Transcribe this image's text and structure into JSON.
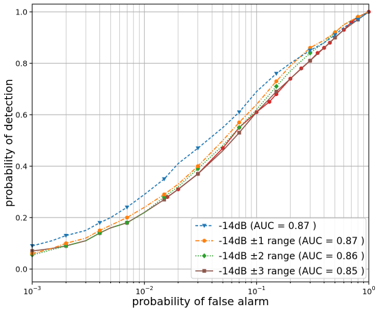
{
  "chart_data": {
    "type": "line",
    "xscale": "log",
    "xlim": [
      0.001,
      1
    ],
    "ylim": [
      -0.05,
      1.03
    ],
    "grid": "on (major and minor)",
    "legend_placement": "lower-right",
    "xlabel": "probability of false alarm",
    "ylabel": "probability of detection",
    "x_ticks": [
      {
        "value": 0.001,
        "base": "10",
        "exp": "−3"
      },
      {
        "value": 0.01,
        "base": "10",
        "exp": "−2"
      },
      {
        "value": 0.1,
        "base": "10",
        "exp": "−1"
      },
      {
        "value": 1,
        "base": "10",
        "exp": "0"
      }
    ],
    "y_ticks": [
      {
        "value": 0.0,
        "label": "0.0"
      },
      {
        "value": 0.2,
        "label": "0.2"
      },
      {
        "value": 0.4,
        "label": "0.4"
      },
      {
        "value": 0.6,
        "label": "0.6"
      },
      {
        "value": 0.8,
        "label": "0.8"
      },
      {
        "value": 1.0,
        "label": "1.0"
      }
    ],
    "series": [
      {
        "name": "-14dB (AUC = 0.87 )",
        "color": "#1f77b4",
        "linestyle": "dashed",
        "marker": "triangle-down",
        "points": [
          [
            0.001,
            0.09
          ],
          [
            0.0015,
            0.11
          ],
          [
            0.002,
            0.13
          ],
          [
            0.003,
            0.15
          ],
          [
            0.004,
            0.18
          ],
          [
            0.005,
            0.2
          ],
          [
            0.007,
            0.24
          ],
          [
            0.01,
            0.29
          ],
          [
            0.015,
            0.35
          ],
          [
            0.02,
            0.41
          ],
          [
            0.03,
            0.47
          ],
          [
            0.05,
            0.55
          ],
          [
            0.07,
            0.61
          ],
          [
            0.1,
            0.69
          ],
          [
            0.15,
            0.76
          ],
          [
            0.2,
            0.8
          ],
          [
            0.3,
            0.85
          ],
          [
            0.4,
            0.88
          ],
          [
            0.5,
            0.91
          ],
          [
            0.6,
            0.94
          ],
          [
            0.8,
            0.97
          ],
          [
            1.0,
            1.0
          ]
        ]
      },
      {
        "name": "-14dB  ±1 range (AUC = 0.87 )",
        "color": "#ff7f0e",
        "linestyle": "dashdot",
        "marker": "circle",
        "points": [
          [
            0.001,
            0.06
          ],
          [
            0.0015,
            0.08
          ],
          [
            0.002,
            0.1
          ],
          [
            0.003,
            0.12
          ],
          [
            0.004,
            0.15
          ],
          [
            0.005,
            0.17
          ],
          [
            0.007,
            0.2
          ],
          [
            0.01,
            0.24
          ],
          [
            0.015,
            0.29
          ],
          [
            0.02,
            0.33
          ],
          [
            0.03,
            0.4
          ],
          [
            0.05,
            0.5
          ],
          [
            0.07,
            0.57
          ],
          [
            0.1,
            0.64
          ],
          [
            0.15,
            0.73
          ],
          [
            0.2,
            0.79
          ],
          [
            0.3,
            0.86
          ],
          [
            0.4,
            0.89
          ],
          [
            0.5,
            0.92
          ],
          [
            0.6,
            0.95
          ],
          [
            0.8,
            0.98
          ],
          [
            1.0,
            1.0
          ]
        ]
      },
      {
        "name": "-14dB  ±2 range (AUC = 0.86 )",
        "color": "#2ca02c",
        "linestyle": "dotted",
        "marker": "diamond",
        "points": [
          [
            0.001,
            0.055
          ],
          [
            0.0015,
            0.075
          ],
          [
            0.002,
            0.09
          ],
          [
            0.003,
            0.11
          ],
          [
            0.004,
            0.14
          ],
          [
            0.005,
            0.16
          ],
          [
            0.007,
            0.18
          ],
          [
            0.01,
            0.22
          ],
          [
            0.015,
            0.28
          ],
          [
            0.02,
            0.32
          ],
          [
            0.03,
            0.39
          ],
          [
            0.05,
            0.48
          ],
          [
            0.07,
            0.55
          ],
          [
            0.1,
            0.62
          ],
          [
            0.15,
            0.71
          ],
          [
            0.2,
            0.77
          ],
          [
            0.3,
            0.84
          ],
          [
            0.4,
            0.88
          ],
          [
            0.5,
            0.92
          ],
          [
            0.6,
            0.95
          ],
          [
            0.8,
            0.98
          ],
          [
            1.0,
            1.0
          ]
        ]
      },
      {
        "name": "-14dB  ±3 range (AUC = 0.85 )",
        "color": "#8c564b",
        "linestyle": "solid",
        "marker": "square",
        "points": [
          [
            0.001,
            0.07
          ],
          [
            0.0015,
            0.08
          ],
          [
            0.002,
            0.09
          ],
          [
            0.003,
            0.11
          ],
          [
            0.004,
            0.14
          ],
          [
            0.005,
            0.16
          ],
          [
            0.007,
            0.18
          ],
          [
            0.01,
            0.22
          ],
          [
            0.015,
            0.27
          ],
          [
            0.02,
            0.31
          ],
          [
            0.03,
            0.37
          ],
          [
            0.05,
            0.46
          ],
          [
            0.07,
            0.53
          ],
          [
            0.1,
            0.61
          ],
          [
            0.15,
            0.69
          ],
          [
            0.2,
            0.74
          ],
          [
            0.3,
            0.81
          ],
          [
            0.4,
            0.86
          ],
          [
            0.5,
            0.9
          ],
          [
            0.6,
            0.93
          ],
          [
            0.8,
            0.97
          ],
          [
            1.0,
            1.0
          ]
        ]
      },
      {
        "name": "",
        "color": "#d62728",
        "linestyle": "solid",
        "marker": "circle",
        "points": [
          [
            0.016,
            0.28
          ],
          [
            0.02,
            0.31
          ],
          [
            0.03,
            0.37
          ],
          [
            0.05,
            0.47
          ],
          [
            0.07,
            0.55
          ],
          [
            0.1,
            0.61
          ],
          [
            0.13,
            0.65
          ],
          [
            0.15,
            0.68
          ],
          [
            0.2,
            0.74
          ],
          [
            0.25,
            0.78
          ],
          [
            0.3,
            0.81
          ],
          [
            0.35,
            0.84
          ],
          [
            0.4,
            0.86
          ],
          [
            0.45,
            0.88
          ],
          [
            0.5,
            0.9
          ],
          [
            0.6,
            0.93
          ],
          [
            0.7,
            0.96
          ],
          [
            0.8,
            0.98
          ],
          [
            1.0,
            1.0
          ]
        ]
      }
    ],
    "legend_entries": [
      0,
      1,
      2,
      3
    ]
  }
}
